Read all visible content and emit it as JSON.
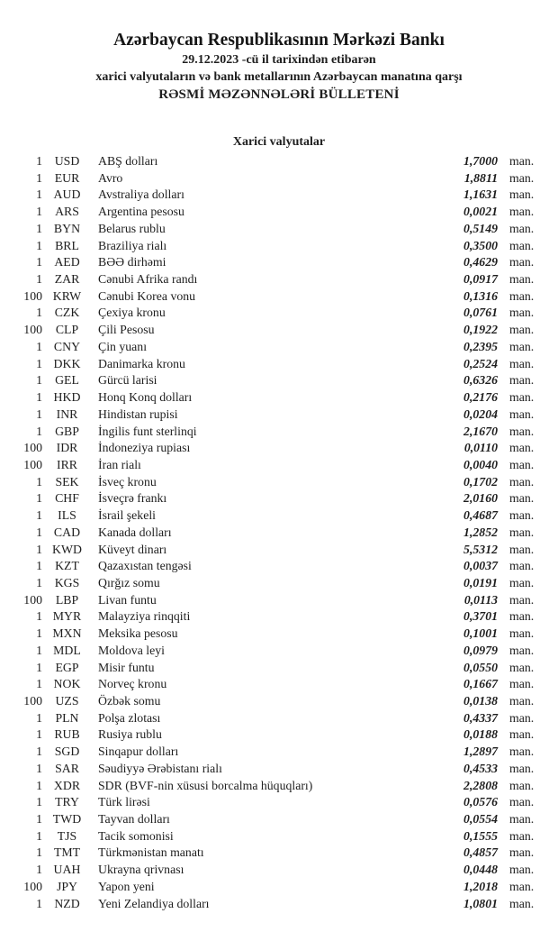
{
  "header": {
    "bank_title": "Azərbaycan Respublikasının Mərkəzi Bankı",
    "date_line": "29.12.2023 -cü il tarixindən etibarən",
    "subtitle_line": "xarici valyutaların və bank metallarının Azərbaycan manatına qarşı",
    "bulletin_title": "RƏSMİ MƏZƏNNƏLƏRİ BÜLLETENİ"
  },
  "section": {
    "title": "Xarici valyutalar"
  },
  "rates": [
    {
      "qty": "1",
      "code": "USD",
      "name": "ABŞ dolları",
      "rate": "1,7000",
      "unit": "man."
    },
    {
      "qty": "1",
      "code": "EUR",
      "name": "Avro",
      "rate": "1,8811",
      "unit": "man."
    },
    {
      "qty": "1",
      "code": "AUD",
      "name": "Avstraliya dolları",
      "rate": "1,1631",
      "unit": "man."
    },
    {
      "qty": "1",
      "code": "ARS",
      "name": "Argentina pesosu",
      "rate": "0,0021",
      "unit": "man."
    },
    {
      "qty": "1",
      "code": "BYN",
      "name": "Belarus rublu",
      "rate": "0,5149",
      "unit": "man."
    },
    {
      "qty": "1",
      "code": "BRL",
      "name": "Braziliya rialı",
      "rate": "0,3500",
      "unit": "man."
    },
    {
      "qty": "1",
      "code": "AED",
      "name": "BƏƏ dirhəmi",
      "rate": "0,4629",
      "unit": "man."
    },
    {
      "qty": "1",
      "code": "ZAR",
      "name": "Cənubi Afrika randı",
      "rate": "0,0917",
      "unit": "man."
    },
    {
      "qty": "100",
      "code": "KRW",
      "name": "Cənubi Korea vonu",
      "rate": "0,1316",
      "unit": "man."
    },
    {
      "qty": "1",
      "code": "CZK",
      "name": "Çexiya kronu",
      "rate": "0,0761",
      "unit": "man."
    },
    {
      "qty": "100",
      "code": "CLP",
      "name": "Çili Pesosu",
      "rate": "0,1922",
      "unit": "man."
    },
    {
      "qty": "1",
      "code": "CNY",
      "name": "Çin yuanı",
      "rate": "0,2395",
      "unit": "man."
    },
    {
      "qty": "1",
      "code": "DKK",
      "name": "Danimarka kronu",
      "rate": "0,2524",
      "unit": "man."
    },
    {
      "qty": "1",
      "code": "GEL",
      "name": "Gürcü larisi",
      "rate": "0,6326",
      "unit": "man."
    },
    {
      "qty": "1",
      "code": "HKD",
      "name": "Honq Konq dolları",
      "rate": "0,2176",
      "unit": "man."
    },
    {
      "qty": "1",
      "code": "INR",
      "name": "Hindistan rupisi",
      "rate": "0,0204",
      "unit": "man."
    },
    {
      "qty": "1",
      "code": "GBP",
      "name": "İngilis funt sterlinqi",
      "rate": "2,1670",
      "unit": "man."
    },
    {
      "qty": "100",
      "code": "IDR",
      "name": "İndoneziya rupiası",
      "rate": "0,0110",
      "unit": "man."
    },
    {
      "qty": "100",
      "code": "IRR",
      "name": "İran rialı",
      "rate": "0,0040",
      "unit": "man."
    },
    {
      "qty": "1",
      "code": "SEK",
      "name": "İsveç kronu",
      "rate": "0,1702",
      "unit": "man."
    },
    {
      "qty": "1",
      "code": "CHF",
      "name": "İsveçrə frankı",
      "rate": "2,0160",
      "unit": "man."
    },
    {
      "qty": "1",
      "code": "ILS",
      "name": "İsrail şekeli",
      "rate": "0,4687",
      "unit": "man."
    },
    {
      "qty": "1",
      "code": "CAD",
      "name": "Kanada dolları",
      "rate": "1,2852",
      "unit": "man."
    },
    {
      "qty": "1",
      "code": "KWD",
      "name": "Küveyt dinarı",
      "rate": "5,5312",
      "unit": "man."
    },
    {
      "qty": "1",
      "code": "KZT",
      "name": "Qazaxıstan tengəsi",
      "rate": "0,0037",
      "unit": "man."
    },
    {
      "qty": "1",
      "code": "KGS",
      "name": "Qırğız somu",
      "rate": "0,0191",
      "unit": "man."
    },
    {
      "qty": "100",
      "code": "LBP",
      "name": "Livan funtu",
      "rate": "0,0113",
      "unit": "man."
    },
    {
      "qty": "1",
      "code": "MYR",
      "name": "Malayziya rinqqiti",
      "rate": "0,3701",
      "unit": "man."
    },
    {
      "qty": "1",
      "code": "MXN",
      "name": "Meksika pesosu",
      "rate": "0,1001",
      "unit": "man."
    },
    {
      "qty": "1",
      "code": "MDL",
      "name": "Moldova leyi",
      "rate": "0,0979",
      "unit": "man."
    },
    {
      "qty": "1",
      "code": "EGP",
      "name": "Misir funtu",
      "rate": "0,0550",
      "unit": "man."
    },
    {
      "qty": "1",
      "code": "NOK",
      "name": "Norveç kronu",
      "rate": "0,1667",
      "unit": "man."
    },
    {
      "qty": "100",
      "code": "UZS",
      "name": "Özbək somu",
      "rate": "0,0138",
      "unit": "man."
    },
    {
      "qty": "1",
      "code": "PLN",
      "name": "Polşa zlotası",
      "rate": "0,4337",
      "unit": "man."
    },
    {
      "qty": "1",
      "code": "RUB",
      "name": "Rusiya rublu",
      "rate": "0,0188",
      "unit": "man."
    },
    {
      "qty": "1",
      "code": "SGD",
      "name": "Sinqapur dolları",
      "rate": "1,2897",
      "unit": "man."
    },
    {
      "qty": "1",
      "code": "SAR",
      "name": "Səudiyyə Ərəbistanı rialı",
      "rate": "0,4533",
      "unit": "man."
    },
    {
      "qty": "1",
      "code": "XDR",
      "name": "SDR (BVF-nin xüsusi borcalma hüquqları)",
      "rate": "2,2808",
      "unit": "man."
    },
    {
      "qty": "1",
      "code": "TRY",
      "name": "Türk lirəsi",
      "rate": "0,0576",
      "unit": "man."
    },
    {
      "qty": "1",
      "code": "TWD",
      "name": "Tayvan dolları",
      "rate": "0,0554",
      "unit": "man."
    },
    {
      "qty": "1",
      "code": "TJS",
      "name": "Tacik somonisi",
      "rate": "0,1555",
      "unit": "man."
    },
    {
      "qty": "1",
      "code": "TMT",
      "name": "Türkmənistan manatı",
      "rate": "0,4857",
      "unit": "man."
    },
    {
      "qty": "1",
      "code": "UAH",
      "name": "Ukrayna qrivnası",
      "rate": "0,0448",
      "unit": "man."
    },
    {
      "qty": "100",
      "code": "JPY",
      "name": "Yapon yeni",
      "rate": "1,2018",
      "unit": "man."
    },
    {
      "qty": "1",
      "code": "NZD",
      "name": "Yeni Zelandiya dolları",
      "rate": "1,0801",
      "unit": "man."
    }
  ]
}
